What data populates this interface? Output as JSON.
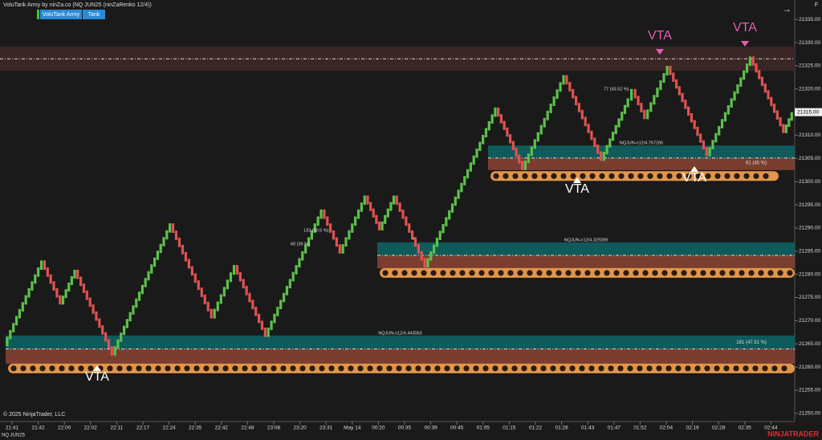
{
  "header": {
    "title": "VoluTank Army by ninZa.co (NQ JUN25 (ninZaRenko 12/4))",
    "buttons": [
      "VoluTank Army",
      "Tank"
    ],
    "corner": "F"
  },
  "chart_data": {
    "type": "renko",
    "pivots": [
      21265,
      21283,
      21274,
      21281,
      21263,
      21291,
      21271,
      21282,
      21267,
      21294,
      21285,
      21297,
      21290,
      21297,
      21288,
      21288,
      21282,
      21316,
      21303,
      21323,
      21305,
      21318,
      21320,
      21314,
      21325,
      21306,
      21327,
      21311,
      21315
    ],
    "up_color": "#5cc24a",
    "down_color": "#e05252",
    "ylim": [
      21249.1,
      21339.2
    ],
    "yticks": [
      {
        "value": 21250,
        "label": "21250.00"
      },
      {
        "value": 21255,
        "label": "21255.00"
      },
      {
        "value": 21260,
        "label": "21260.00"
      },
      {
        "value": 21265,
        "label": "21265.00"
      },
      {
        "value": 21270,
        "label": "21270.00"
      },
      {
        "value": 21275,
        "label": "21275.00"
      },
      {
        "value": 21280,
        "label": "21280.00"
      },
      {
        "value": 21285,
        "label": "21285.00"
      },
      {
        "value": 21290,
        "label": "21290.00"
      },
      {
        "value": 21295,
        "label": "21295.00"
      },
      {
        "value": 21300,
        "label": "21300.00"
      },
      {
        "value": 21305,
        "label": "21305.00"
      },
      {
        "value": 21310,
        "label": "21310.00"
      },
      {
        "value": 21315,
        "label": "21315.00"
      },
      {
        "value": 21320,
        "label": "21320.00"
      },
      {
        "value": 21325,
        "label": "21325.00"
      },
      {
        "value": 21330,
        "label": "21330.00"
      },
      {
        "value": 21335,
        "label": "21335.00"
      }
    ],
    "current_price": {
      "value": 21315,
      "label": "21315.00"
    },
    "categories": [
      "21:41",
      "21:42",
      "22:00",
      "22:02",
      "22:11",
      "22:17",
      "22:24",
      "22:35",
      "22:42",
      "22:48",
      "23:08",
      "23:20",
      "23:31",
      "May 14",
      "00:20",
      "00:35",
      "00:39",
      "00:45",
      "01:05",
      "01:15",
      "01:22",
      "01:26",
      "01:43",
      "01:47",
      "01:52",
      "02:04",
      "02:16",
      "02:28",
      "02:35",
      "02:44"
    ],
    "zones": [
      {
        "label": "NQJUN-n12/4.443063",
        "count_label": "181 (47.51 %)",
        "teal": [
          21263.9,
          21266.8
        ],
        "brown": [
          21260.7,
          21263.9
        ],
        "line": 21263.9,
        "dots": 21259.7
      },
      {
        "label": "NQJUN-n12/4.329289",
        "teal": [
          21284.1,
          21286.9
        ],
        "brown": [
          21281.3,
          21284.1
        ],
        "line": 21284.1,
        "dots": 21280.3
      },
      {
        "label": "NQJUN-n12/4.767266",
        "count_label": "81 (45 %)",
        "teal": [
          21305.1,
          21307.8
        ],
        "brown": [
          21302.5,
          21305.1
        ],
        "line": 21305.1,
        "dots": 21301.2
      }
    ],
    "top_zone": {
      "brown": [
        21323.9,
        21329.1
      ],
      "line": 21326.5
    },
    "small_labels": [
      "133 (60.5 %)",
      "60 (39 %)",
      "77 (43.52 %)"
    ],
    "vta": [
      "VTA",
      "VTA",
      "VTA",
      "VTA",
      "VTA"
    ]
  },
  "footer": {
    "copyright": "© 2025 NinjaTrader, LLC",
    "instrument": "NQ JUN25",
    "brand": "NINJATRADER"
  }
}
